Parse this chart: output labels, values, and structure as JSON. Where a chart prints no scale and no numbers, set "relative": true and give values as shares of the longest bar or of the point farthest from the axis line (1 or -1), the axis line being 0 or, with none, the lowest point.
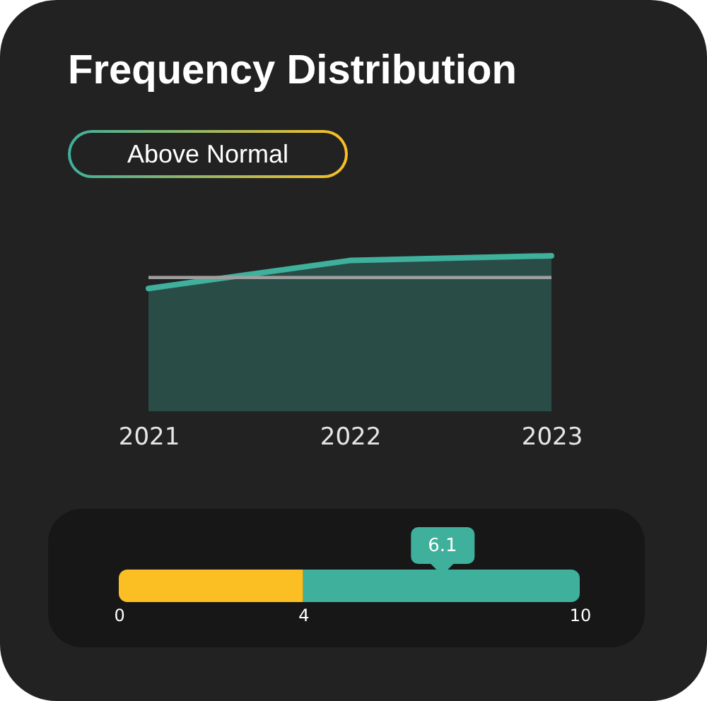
{
  "chart_data": [
    {
      "type": "area",
      "title": "Frequency Distribution",
      "subtitle": "Above Normal",
      "categories": [
        "2021",
        "2022",
        "2023"
      ],
      "relative": true,
      "series": [
        {
          "color": "#3eb09c",
          "values": [
            0.79,
            0.97,
            1
          ]
        }
      ],
      "ref_lines": [
        {
          "axis": "y",
          "value": 0.86,
          "color": "#9e9e9e"
        }
      ]
    },
    {
      "type": "bar",
      "orientation": "horizontal",
      "stacked": true,
      "categories": [
        null
      ],
      "xlim": [
        0,
        10
      ],
      "xticks": [
        0,
        4,
        10
      ],
      "series": [
        {
          "color": "#fbbf24",
          "values": [
            4
          ]
        },
        {
          "color": "#3eb09c",
          "values": [
            6
          ]
        }
      ],
      "annotations": [
        "6.1"
      ]
    }
  ]
}
